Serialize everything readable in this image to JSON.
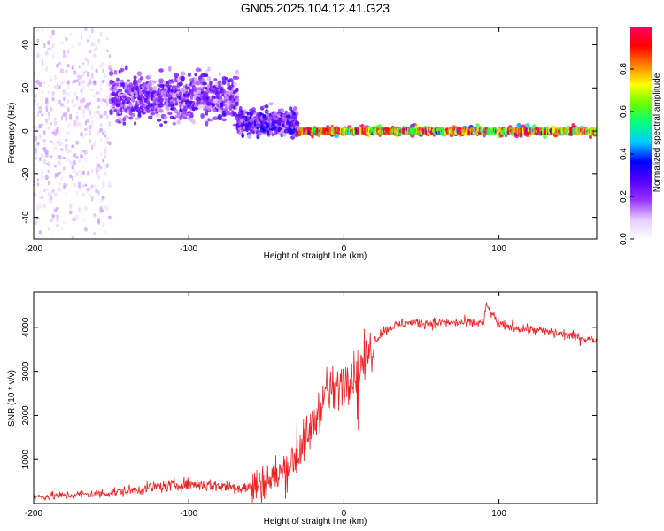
{
  "title": "GN05.2025.104.12.41.G23",
  "chart_data": [
    {
      "type": "heatmap",
      "title": "GN05.2025.104.12.41.G23",
      "xlabel": "Height of straight line (km)",
      "ylabel": "Frequency (Hz)",
      "xlim": [
        -200,
        163
      ],
      "ylim": [
        -50,
        48
      ],
      "xticks": [
        -200,
        -100,
        0,
        100
      ],
      "yticks": [
        -40,
        -20,
        0,
        20,
        40
      ],
      "grid": false,
      "colorbar": {
        "label": "Normalized spectral amplitude",
        "range": [
          0,
          1
        ],
        "ticks": [
          "0.0",
          "0.2",
          "0.4",
          "0.6",
          "0.8"
        ],
        "colormap": [
          "#ffffff",
          "#e6ccff",
          "#9933ff",
          "#5500ff",
          "#0000ff",
          "#00ccff",
          "#00ff80",
          "#66ff00",
          "#ffff00",
          "#ff8000",
          "#ff0000",
          "#ff0066"
        ]
      },
      "series": [
        {
          "x_range": [
            -200,
            -150
          ],
          "freq_center": 0,
          "freq_spread": 48,
          "amplitude": 0.12
        },
        {
          "x_range": [
            -150,
            -68
          ],
          "freq_center": 16,
          "freq_spread": 10,
          "amplitude": 0.25
        },
        {
          "x_range": [
            -68,
            -30
          ],
          "freq_center": 4,
          "freq_spread": 6,
          "amplitude": 0.3
        },
        {
          "x_range": [
            -30,
            163
          ],
          "freq_center": 0,
          "freq_spread": 2,
          "amplitude": 0.95
        }
      ]
    },
    {
      "type": "line",
      "xlabel": "Height of straight line (km)",
      "ylabel": "SNR (10 * v/v)",
      "xlim": [
        -200,
        163
      ],
      "ylim": [
        0,
        4800
      ],
      "xticks": [
        -200,
        -100,
        0,
        100
      ],
      "yticks": [
        1000,
        2000,
        3000,
        4000
      ],
      "color": "#ee2222",
      "grid": false,
      "series": [
        {
          "x": [
            -200,
            -180,
            -160,
            -140,
            -120,
            -100,
            -80,
            -60,
            -50,
            -40,
            -30,
            -25,
            -20,
            -15,
            -10,
            -5,
            0,
            5,
            10,
            15,
            20,
            25,
            30,
            40,
            60,
            80,
            90,
            92,
            100,
            120,
            140,
            163
          ],
          "y": [
            150,
            180,
            220,
            280,
            380,
            450,
            400,
            350,
            500,
            700,
            1100,
            1400,
            1800,
            2200,
            2500,
            2650,
            2800,
            2900,
            3100,
            3300,
            3700,
            3900,
            4000,
            4100,
            4100,
            4100,
            4100,
            4500,
            4050,
            3950,
            3850,
            3700
          ]
        }
      ]
    }
  ]
}
